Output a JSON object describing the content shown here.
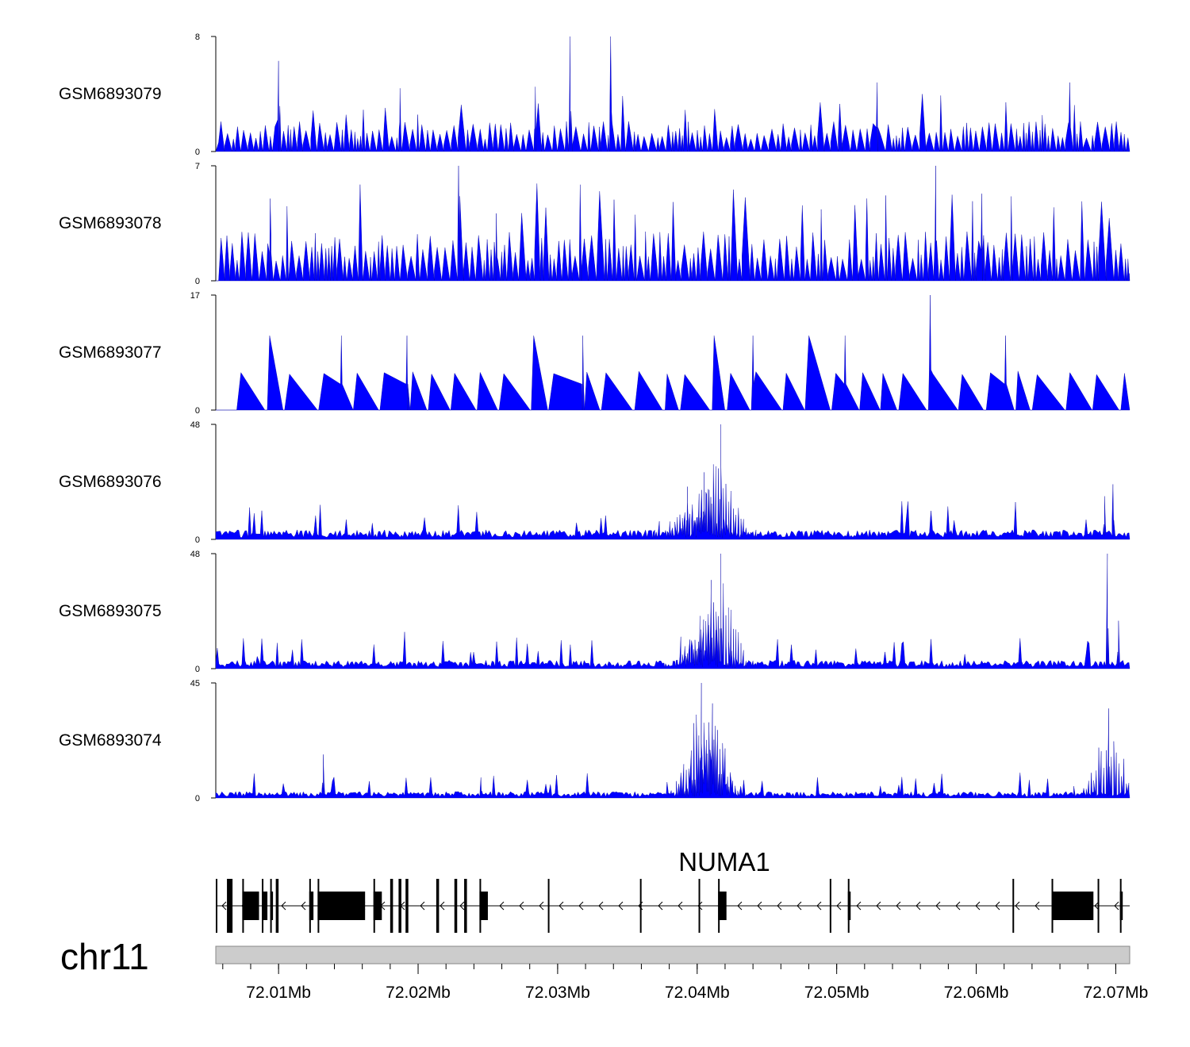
{
  "chart_data": {
    "type": "area",
    "title": "",
    "chromosome": "chr11",
    "xlim": [
      72005500,
      72071000
    ],
    "x_ticks": [
      72010000,
      72020000,
      72030000,
      72040000,
      72050000,
      72060000,
      72070000
    ],
    "x_tick_labels": [
      "72.01Mb",
      "72.02Mb",
      "72.03Mb",
      "72.04Mb",
      "72.05Mb",
      "72.06Mb",
      "72.07Mb"
    ],
    "fill_color": "#0000ff",
    "tracks": [
      {
        "name": "GSM6893079",
        "ylim": [
          0,
          8
        ],
        "ymax_label": "8",
        "ymin_label": "0",
        "profile": {
          "type": "sparse",
          "base": 1.4,
          "peaks": [
            [
              72010000,
              6.3
            ],
            [
              72030900,
              8
            ],
            [
              72033800,
              8
            ],
            [
              72052900,
              4.8
            ],
            [
              72066700,
              4.8
            ],
            [
              72028400,
              4.5
            ],
            [
              72018700,
              4.4
            ]
          ]
        }
      },
      {
        "name": "GSM6893078",
        "ylim": [
          0,
          7
        ],
        "ymax_label": "7",
        "ymin_label": "0",
        "profile": {
          "type": "sparse",
          "base": 2.0,
          "peaks": [
            [
              72022900,
              7
            ],
            [
              72057100,
              7
            ],
            [
              72009400,
              5.0
            ],
            [
              72025600,
              4.1
            ],
            [
              72060400,
              5.3
            ]
          ]
        }
      },
      {
        "name": "GSM6893077",
        "ylim": [
          0,
          17
        ],
        "ymax_label": "17",
        "ymin_label": "0",
        "profile": {
          "type": "triangles",
          "base": 5.5,
          "peaks": [
            [
              72056700,
              17
            ],
            [
              72014500,
              11
            ],
            [
              72019200,
              11
            ],
            [
              72044000,
              11
            ],
            [
              72062100,
              11
            ],
            [
              72031800,
              11
            ],
            [
              72050600,
              11
            ]
          ]
        }
      },
      {
        "name": "GSM6893076",
        "ylim": [
          0,
          48
        ],
        "ymax_label": "48",
        "ymin_label": "0",
        "profile": {
          "type": "peaky",
          "base": 4,
          "peaks": [
            [
              72041700,
              48
            ],
            [
              72040500,
              28
            ],
            [
              72039300,
              22
            ],
            [
              72069800,
              23
            ],
            [
              72069200,
              18
            ]
          ]
        }
      },
      {
        "name": "GSM6893075",
        "ylim": [
          0,
          48
        ],
        "ymax_label": "48",
        "ymin_label": "0",
        "profile": {
          "type": "peaky",
          "base": 3.5,
          "peaks": [
            [
              72041700,
              48
            ],
            [
              72041000,
              37
            ],
            [
              72040200,
              22
            ],
            [
              72069400,
              48
            ],
            [
              72070200,
              20
            ]
          ]
        }
      },
      {
        "name": "GSM6893074",
        "ylim": [
          0,
          45
        ],
        "ymax_label": "45",
        "ymin_label": "0",
        "profile": {
          "type": "peaky",
          "base": 2.5,
          "peaks": [
            [
              72040300,
              45
            ],
            [
              72041100,
              37
            ],
            [
              72069500,
              35
            ],
            [
              72013200,
              17
            ],
            [
              72024500,
              8
            ]
          ]
        }
      }
    ],
    "gene": {
      "name": "NUMA1",
      "strand": "-",
      "start": 72005500,
      "end": 72071000,
      "exons": [
        [
          72005500,
          72005600,
          "thin"
        ],
        [
          72006300,
          72006700,
          "thin"
        ],
        [
          72007400,
          72008600,
          "thick"
        ],
        [
          72008800,
          72009200,
          "thick"
        ],
        [
          72009400,
          72009600,
          "thick"
        ],
        [
          72009800,
          72010000,
          "thin"
        ],
        [
          72012200,
          72012500,
          "thick"
        ],
        [
          72012800,
          72016200,
          "thick"
        ],
        [
          72016800,
          72017400,
          "thick"
        ],
        [
          72018000,
          72018200,
          "thin"
        ],
        [
          72018600,
          72018800,
          "thin"
        ],
        [
          72019100,
          72019300,
          "thin"
        ],
        [
          72021300,
          72021500,
          "thin"
        ],
        [
          72022600,
          72022800,
          "thin"
        ],
        [
          72023300,
          72023500,
          "thin"
        ],
        [
          72024400,
          72025000,
          "thick"
        ],
        [
          72029300,
          72029400,
          "thin"
        ],
        [
          72035900,
          72036000,
          "thin"
        ],
        [
          72040100,
          72040200,
          "thin"
        ],
        [
          72041500,
          72042100,
          "thick"
        ],
        [
          72049500,
          72049600,
          "thin"
        ],
        [
          72050800,
          72051000,
          "thick"
        ],
        [
          72062600,
          72062700,
          "thin"
        ],
        [
          72065400,
          72068400,
          "thick"
        ],
        [
          72068700,
          72068800,
          "thin"
        ],
        [
          72070300,
          72070500,
          "thick"
        ]
      ]
    }
  }
}
